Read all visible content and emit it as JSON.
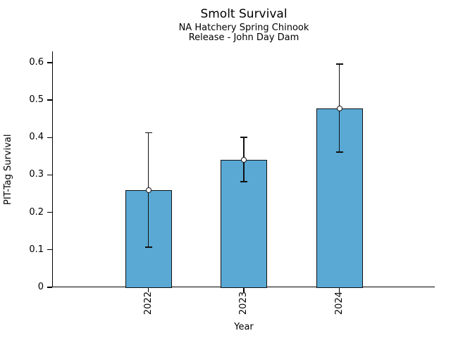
{
  "colors": {
    "background": "#ffffff",
    "bar_fill": "#59A9D4",
    "bar_edge": "#111111",
    "error_bar": "#111111",
    "axis": "#000000"
  },
  "chart_data": {
    "type": "bar",
    "title": "Smolt Survival",
    "subtitle": [
      "NA Hatchery Spring Chinook",
      "Release - John Day Dam"
    ],
    "categories": [
      "2022",
      "2023",
      "2024"
    ],
    "values": [
      0.26,
      0.34,
      0.478
    ],
    "error_low": [
      0.107,
      0.282,
      0.361
    ],
    "error_high": [
      0.413,
      0.401,
      0.596
    ],
    "xlabel": "Year",
    "ylabel": "PIT-Tag Survival",
    "ylim": [
      0,
      0.63
    ],
    "yticks": [
      0,
      0.1,
      0.2,
      0.3,
      0.4,
      0.5,
      0.6
    ],
    "ytick_labels": [
      "0",
      "0.1",
      "0.2",
      "0.3",
      "0.4",
      "0.5",
      "0.6"
    ],
    "grid": false,
    "legend": null,
    "marker": "open-circle",
    "error_caps": true
  }
}
